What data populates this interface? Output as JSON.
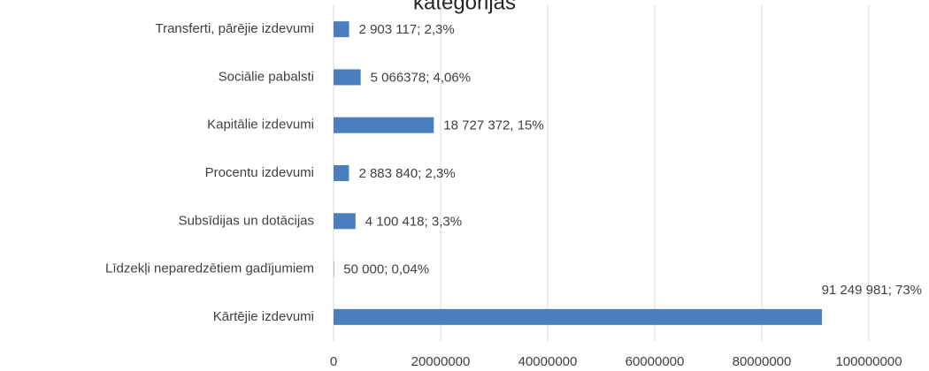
{
  "chart_data": {
    "type": "bar",
    "orientation": "horizontal",
    "title": "kategorijās",
    "categories": [
      "Transferti, pārējie izdevumi",
      "Sociālie pabalsti",
      "Kapitālie izdevumi",
      "Procentu izdevumi",
      "Subsīdijas un dotācijas",
      "Līdzekļi neparedzētiem gadījumiem",
      "Kārtējie izdevumi"
    ],
    "values": [
      2903117,
      5066378,
      18727372,
      2883840,
      4100418,
      50000,
      91249981
    ],
    "value_labels": [
      "2 903 117; 2,3%",
      "5 066378; 4,06%",
      "18 727 372, 15%",
      "2 883 840; 2,3%",
      "4 100 418; 3,3%",
      "50 000; 0,04%",
      "91 249 981; 73%"
    ],
    "color": "#4a7ebf",
    "xlim": [
      0,
      100000000
    ],
    "xticks": [
      0,
      20000000,
      40000000,
      60000000,
      80000000,
      100000000
    ],
    "grid": true
  }
}
